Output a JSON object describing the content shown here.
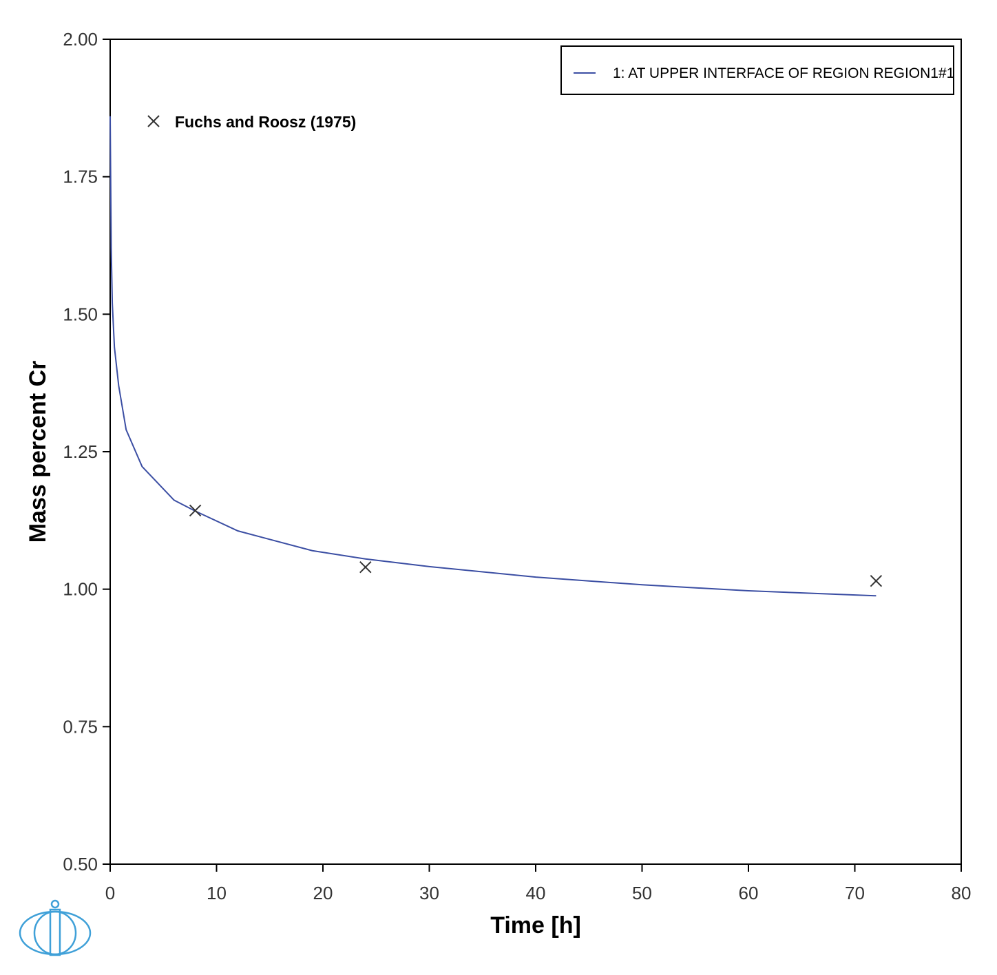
{
  "chart_data": {
    "type": "line",
    "xlabel": "Time [h]",
    "ylabel": "Mass percent Cr",
    "xlim": [
      0,
      80
    ],
    "ylim": [
      0.5,
      2.0
    ],
    "x_ticks": [
      "0",
      "10",
      "20",
      "30",
      "40",
      "50",
      "60",
      "70",
      "80"
    ],
    "y_ticks": [
      "0.50",
      "0.75",
      "1.00",
      "1.25",
      "1.50",
      "1.75",
      "2.00"
    ],
    "grid": false,
    "legend_position": "top-right",
    "series": [
      {
        "name": "1:  AT UPPER INTERFACE OF REGION REGION1#1",
        "color": "#3b4ea3",
        "points": [
          [
            0.0,
            1.86
          ],
          [
            0.1,
            1.62
          ],
          [
            0.2,
            1.52
          ],
          [
            0.4,
            1.44
          ],
          [
            0.8,
            1.37
          ],
          [
            1.5,
            1.29
          ],
          [
            3.0,
            1.223
          ],
          [
            6.0,
            1.162
          ],
          [
            8.0,
            1.142
          ],
          [
            12.0,
            1.106
          ],
          [
            19.0,
            1.07
          ],
          [
            24.0,
            1.055
          ],
          [
            30.0,
            1.041
          ],
          [
            40.0,
            1.022
          ],
          [
            50.0,
            1.008
          ],
          [
            60.0,
            0.997
          ],
          [
            72.0,
            0.988
          ]
        ]
      }
    ],
    "scatter": {
      "name": "Fuchs and Roosz (1975)",
      "marker": "x",
      "color": "#333333",
      "points": [
        [
          8.0,
          1.143
        ],
        [
          24.0,
          1.04
        ],
        [
          72.0,
          1.015
        ]
      ]
    }
  },
  "colors": {
    "line": "#3b4ea3",
    "axis": "#000000",
    "logo": "#3fa0d8"
  },
  "logo_icon": "thermo-calc-logo-icon"
}
